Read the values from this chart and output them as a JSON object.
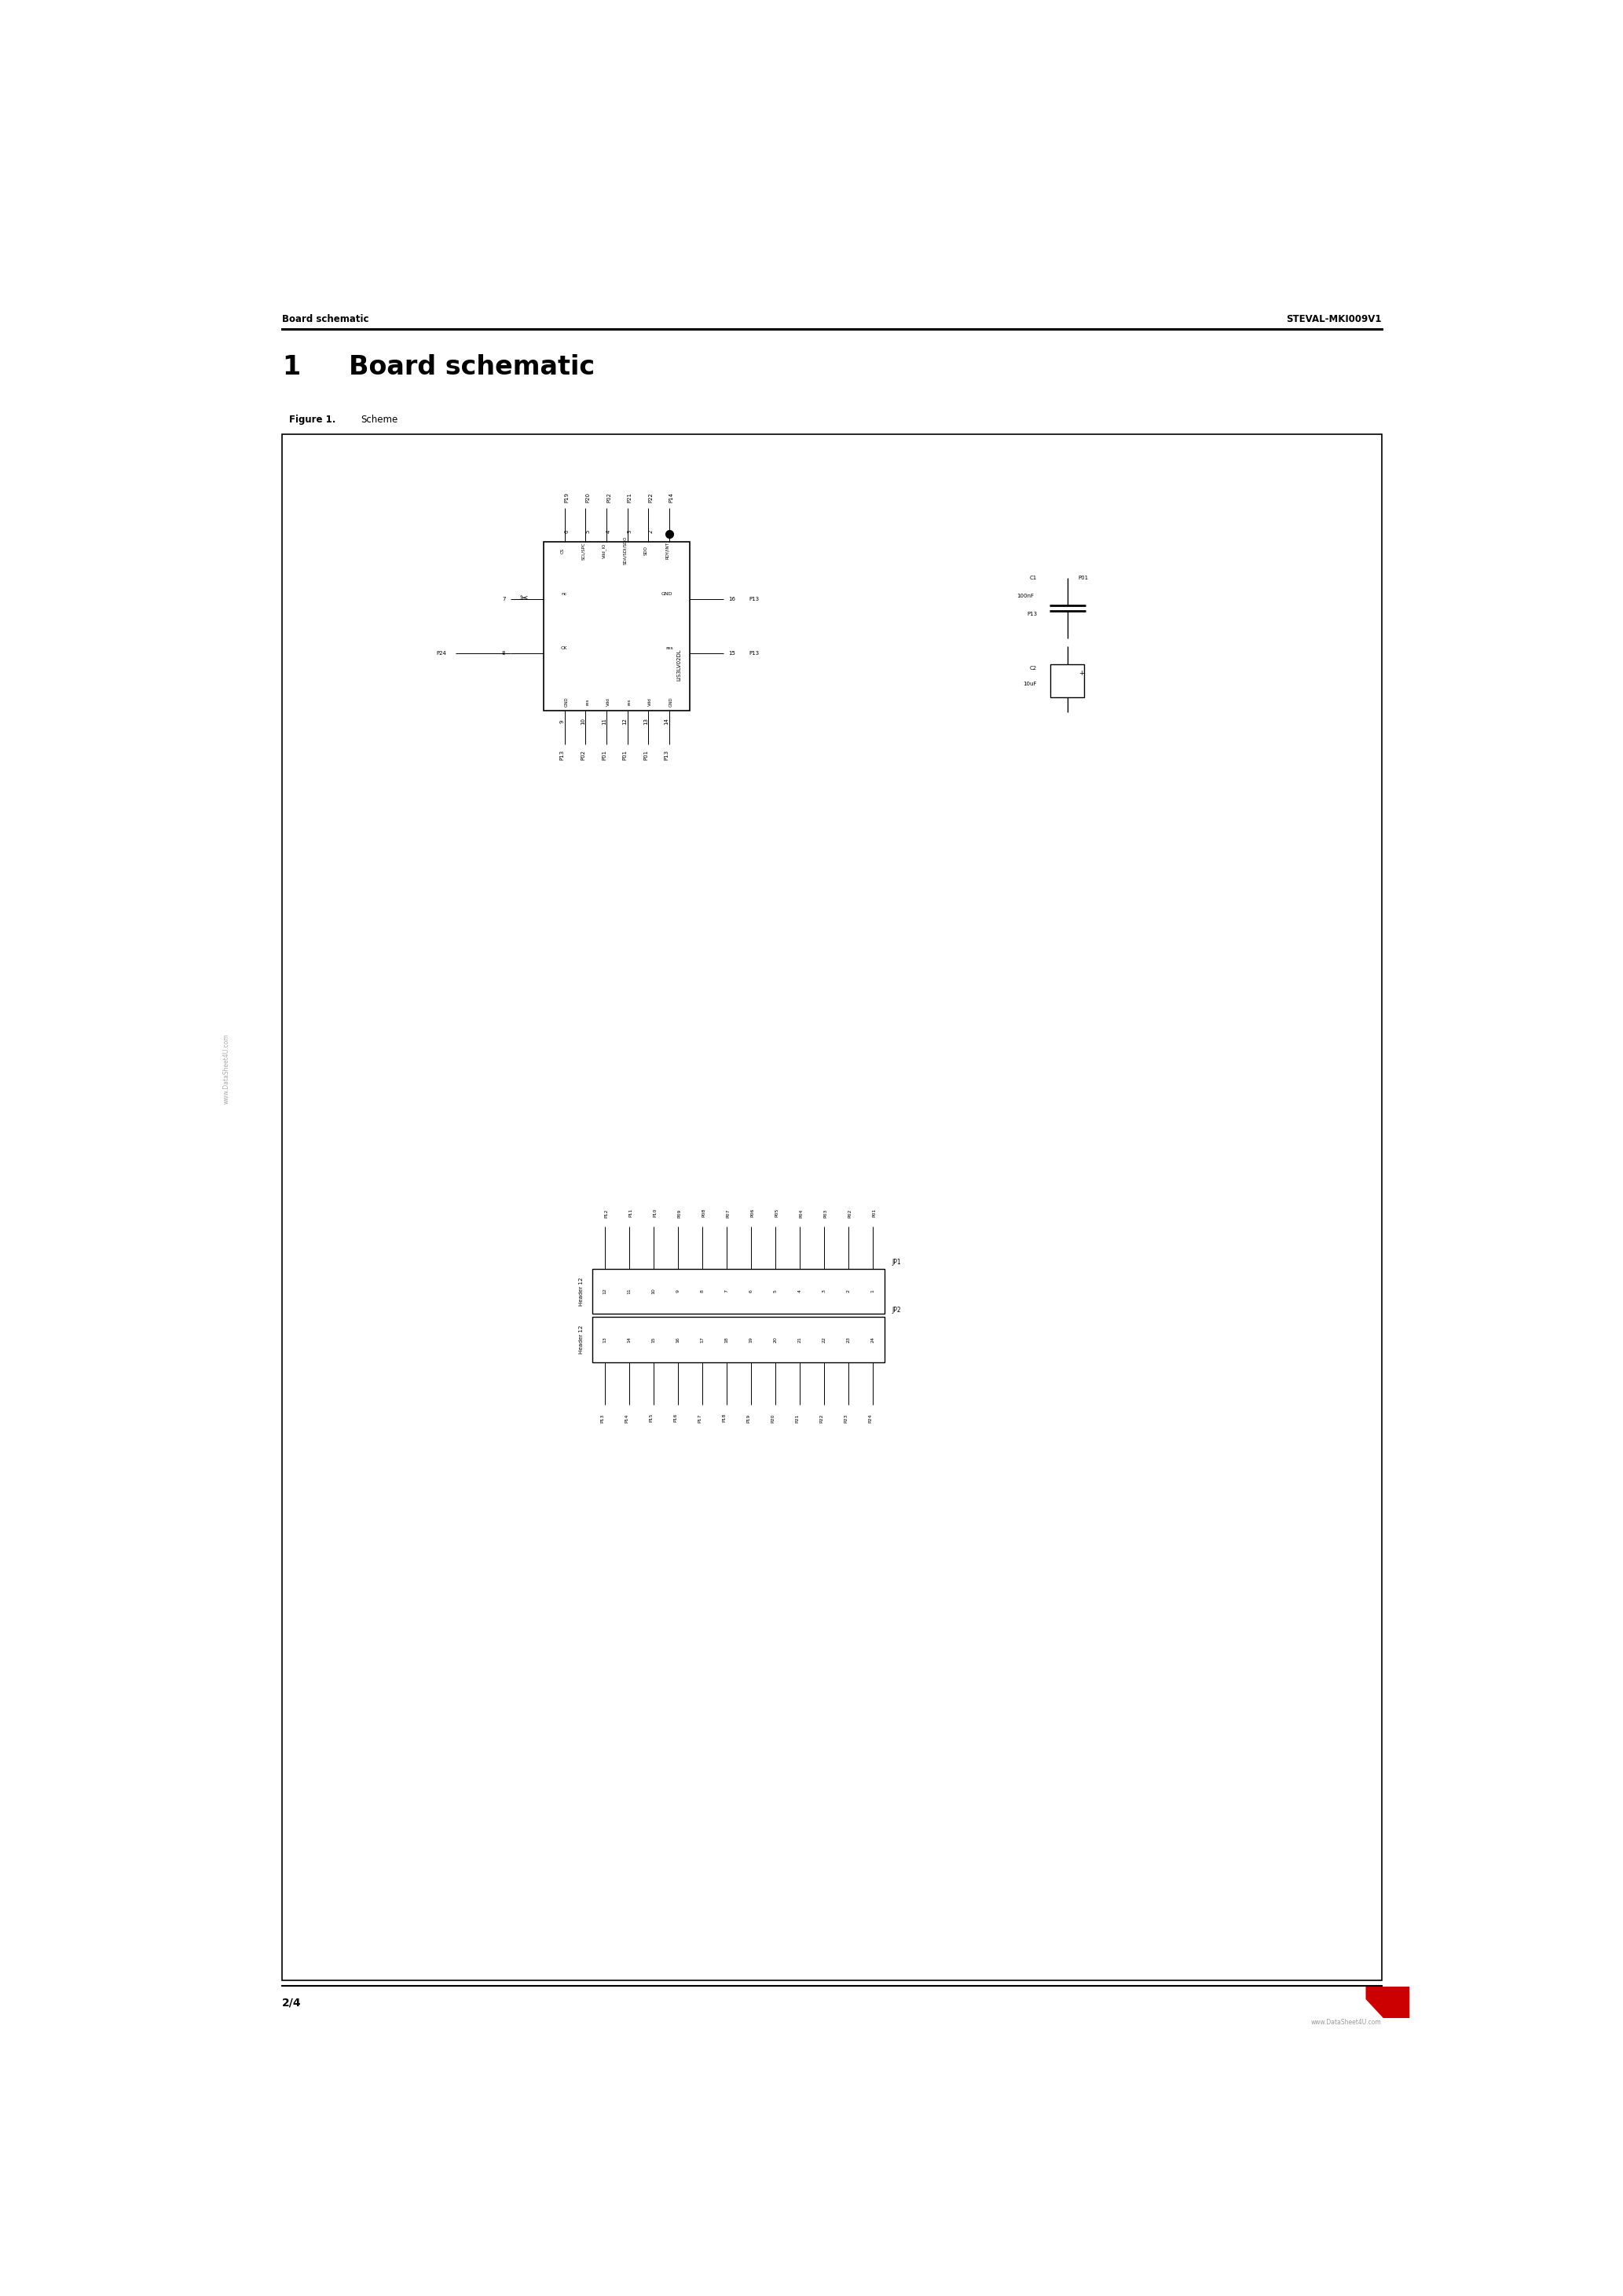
{
  "page_width": 20.66,
  "page_height": 29.24,
  "bg_color": "#ffffff",
  "header_left": "Board schematic",
  "header_right": "STEVAL-MKI009V1",
  "section_number": "1",
  "section_title": "Board schematic",
  "figure_label": "Figure 1.",
  "figure_title": "Scheme",
  "footer_left": "2/4",
  "watermark_left": "www.DataSheet4U.com",
  "footer_website": "www.DataSheet4U.com",
  "st_logo_color": "#cc0000",
  "ic_name": "LIS3LV02DL",
  "top_pins": {
    "nums": [
      "1",
      "2",
      "3",
      "4",
      "5",
      "6"
    ],
    "labels": [
      "P14",
      "P22",
      "P21",
      "P02",
      "P20",
      "P19"
    ],
    "names": [
      "RDY/INT",
      "SDO",
      "SDA/SDI/SDO",
      "Vdd_IO",
      "SCL/SPC",
      "CS"
    ]
  },
  "bottom_pins": {
    "nums": [
      "14",
      "13",
      "12",
      "11",
      "10",
      "9"
    ],
    "labels": [
      "P13",
      "P01",
      "P01",
      "P01",
      "P02",
      "P13"
    ],
    "names": [
      "GND",
      "Vdd",
      "res",
      "Vdd",
      "res",
      "GND"
    ]
  },
  "left_pins": [
    {
      "num": "7",
      "name": "nc",
      "label": ""
    },
    {
      "num": "8",
      "name": "CK",
      "label": "P24"
    }
  ],
  "right_pins": [
    {
      "num": "16",
      "name": "GND",
      "label": "P13"
    },
    {
      "num": "15",
      "name": "res",
      "label": "P13"
    }
  ],
  "jp1_pin_nums": [
    "1",
    "2",
    "3",
    "4",
    "5",
    "6",
    "7",
    "8",
    "9",
    "10",
    "11",
    "12"
  ],
  "jp1_pin_labels": [
    "P01",
    "P02",
    "P03",
    "P04",
    "P05",
    "P06",
    "P07",
    "P08",
    "P09",
    "P10",
    "P11",
    "P12"
  ],
  "jp2_pin_nums": [
    "24",
    "23",
    "22",
    "21",
    "20",
    "19",
    "18",
    "17",
    "16",
    "15",
    "14",
    "13"
  ],
  "jp2_pin_labels": [
    "P24",
    "P23",
    "P22",
    "P21",
    "P20",
    "P19",
    "P18",
    "P17",
    "P16",
    "P15",
    "P14",
    "P13"
  ]
}
